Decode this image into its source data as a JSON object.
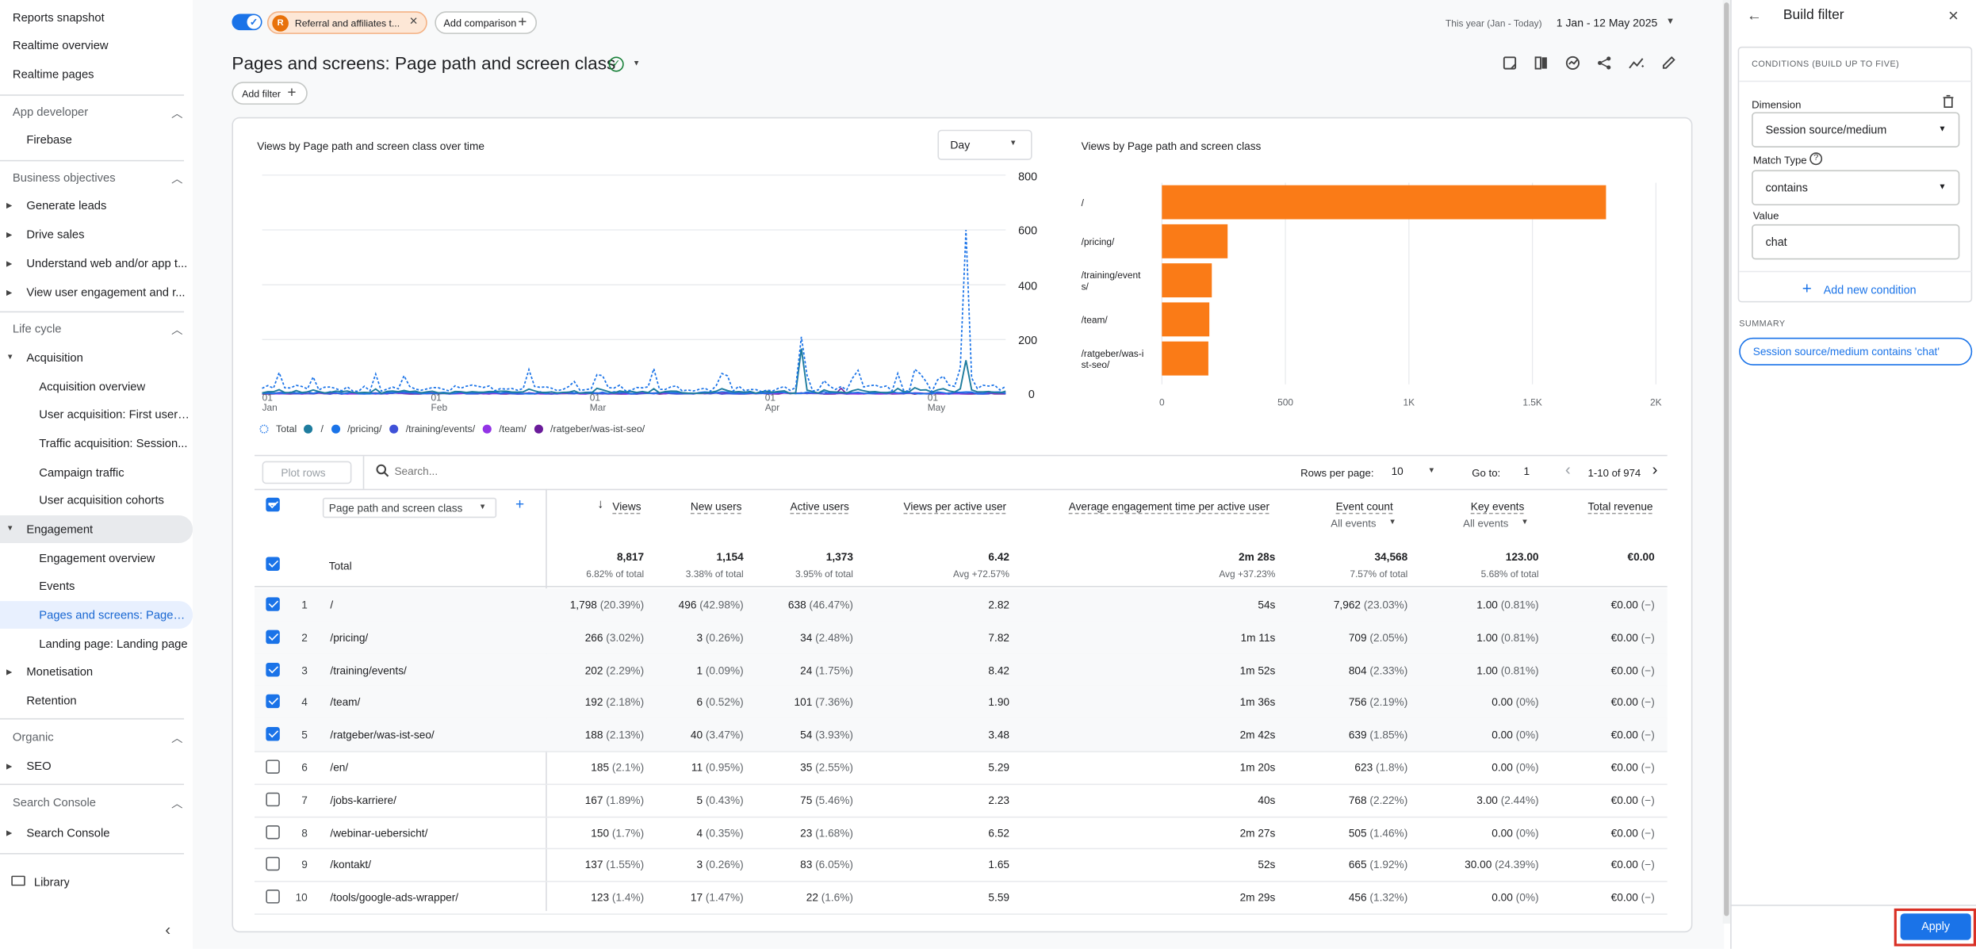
{
  "sidebar": {
    "top_items": [
      "Reports snapshot",
      "Realtime overview",
      "Realtime pages"
    ],
    "sections": [
      {
        "title": "App developer",
        "items": [
          {
            "label": "Firebase"
          }
        ]
      },
      {
        "title": "Business objectives",
        "items": [
          {
            "label": "Generate leads"
          },
          {
            "label": "Drive sales"
          },
          {
            "label": "Understand web and/or app t..."
          },
          {
            "label": "View user engagement and r..."
          }
        ]
      },
      {
        "title": "Life cycle"
      },
      {
        "title": "Organic"
      },
      {
        "title": "Search Console"
      }
    ],
    "lifecycle": {
      "acquisition": "Acquisition",
      "acq_items": [
        "Acquisition overview",
        "User acquisition: First user ...",
        "Traffic acquisition: Session...",
        "Campaign traffic",
        "User acquisition cohorts"
      ],
      "engagement": "Engagement",
      "eng_items": [
        "Engagement overview",
        "Events",
        "Pages and screens: Page p...",
        "Landing page: Landing page"
      ],
      "monetisation": "Monetisation",
      "retention": "Retention"
    },
    "seo": "SEO",
    "search_console": "Search Console",
    "library": "Library"
  },
  "topbar": {
    "filter_chip_letter": "R",
    "filter_chip": "Referral and affiliates t...",
    "add_comparison": "Add comparison",
    "date_label": "This year (Jan - Today)",
    "date_range": "1 Jan - 12 May 2025"
  },
  "page": {
    "title": "Pages and screens: Page path and screen class",
    "add_filter": "Add filter"
  },
  "line_chart": {
    "title": "Views by Page path and screen class over time",
    "granularity": "Day",
    "y_ticks": [
      "800",
      "600",
      "400",
      "200",
      "0"
    ],
    "x_ticks": [
      {
        "d": "01",
        "m": "Jan"
      },
      {
        "d": "01",
        "m": "Feb"
      },
      {
        "d": "01",
        "m": "Mar"
      },
      {
        "d": "01",
        "m": "Apr"
      },
      {
        "d": "01",
        "m": "May"
      }
    ],
    "legend": [
      "Total",
      "/",
      "/pricing/",
      "/training/events/",
      "/team/",
      "/ratgeber/was-ist-seo/"
    ]
  },
  "chart_data": {
    "type": "bar",
    "title": "Views by Page path and screen class",
    "categories": [
      "/",
      "/pricing/",
      "/training/events/",
      "/team/",
      "/ratgeber/was-ist-seo/"
    ],
    "category_labels": [
      [
        "/"
      ],
      [
        "/pricing/"
      ],
      [
        "/training/event",
        "s/"
      ],
      [
        "/team/"
      ],
      [
        "/ratgeber/was-i",
        "st-seo/"
      ]
    ],
    "values": [
      1798,
      266,
      202,
      192,
      188
    ],
    "x_ticks": [
      "0",
      "500",
      "1K",
      "1.5K",
      "2K"
    ],
    "xlim": [
      0,
      2000
    ],
    "color": "#fa7b17"
  },
  "table": {
    "plot_rows": "Plot rows",
    "search_placeholder": "Search...",
    "rows_per_page_label": "Rows per page:",
    "rows_per_page": "10",
    "go_to_label": "Go to:",
    "go_to": "1",
    "pagination": "1-10 of 974",
    "dimension": "Page path and screen class",
    "headers": [
      "Views",
      "New users",
      "Active users",
      "Views per active user",
      "Average engagement time per active user",
      "Event count",
      "Key events",
      "Total revenue"
    ],
    "all_events": "All events",
    "total_label": "Total",
    "totals": [
      {
        "v": "8,817",
        "s": "6.82% of total"
      },
      {
        "v": "1,154",
        "s": "3.38% of total"
      },
      {
        "v": "1,373",
        "s": "3.95% of total"
      },
      {
        "v": "6.42",
        "s": "Avg +72.57%"
      },
      {
        "v": "2m 28s",
        "s": "Avg +37.23%"
      },
      {
        "v": "34,568",
        "s": "7.57% of total"
      },
      {
        "v": "123.00",
        "s": "5.68% of total"
      },
      {
        "v": "€0.00",
        "s": ""
      }
    ],
    "rows": [
      {
        "n": "1",
        "page": "/",
        "views": "1,798",
        "vp": "(20.39%)",
        "new": "496",
        "np": "(42.98%)",
        "active": "638",
        "ap": "(46.47%)",
        "vpu": "2.82",
        "eng": "54s",
        "ev": "7,962",
        "evp": "(23.03%)",
        "key": "1.00",
        "kp": "(0.81%)",
        "rev": "€0.00",
        "rp": "(−)",
        "checked": true
      },
      {
        "n": "2",
        "page": "/pricing/",
        "views": "266",
        "vp": "(3.02%)",
        "new": "3",
        "np": "(0.26%)",
        "active": "34",
        "ap": "(2.48%)",
        "vpu": "7.82",
        "eng": "1m 11s",
        "ev": "709",
        "evp": "(2.05%)",
        "key": "1.00",
        "kp": "(0.81%)",
        "rev": "€0.00",
        "rp": "(−)",
        "checked": true
      },
      {
        "n": "3",
        "page": "/training/events/",
        "views": "202",
        "vp": "(2.29%)",
        "new": "1",
        "np": "(0.09%)",
        "active": "24",
        "ap": "(1.75%)",
        "vpu": "8.42",
        "eng": "1m 52s",
        "ev": "804",
        "evp": "(2.33%)",
        "key": "1.00",
        "kp": "(0.81%)",
        "rev": "€0.00",
        "rp": "(−)",
        "checked": true
      },
      {
        "n": "4",
        "page": "/team/",
        "views": "192",
        "vp": "(2.18%)",
        "new": "6",
        "np": "(0.52%)",
        "active": "101",
        "ap": "(7.36%)",
        "vpu": "1.90",
        "eng": "1m 36s",
        "ev": "756",
        "evp": "(2.19%)",
        "key": "0.00",
        "kp": "(0%)",
        "rev": "€0.00",
        "rp": "(−)",
        "checked": true
      },
      {
        "n": "5",
        "page": "/ratgeber/was-ist-seo/",
        "views": "188",
        "vp": "(2.13%)",
        "new": "40",
        "np": "(3.47%)",
        "active": "54",
        "ap": "(3.93%)",
        "vpu": "3.48",
        "eng": "2m 42s",
        "ev": "639",
        "evp": "(1.85%)",
        "key": "0.00",
        "kp": "(0%)",
        "rev": "€0.00",
        "rp": "(−)",
        "checked": true
      },
      {
        "n": "6",
        "page": "/en/",
        "views": "185",
        "vp": "(2.1%)",
        "new": "11",
        "np": "(0.95%)",
        "active": "35",
        "ap": "(2.55%)",
        "vpu": "5.29",
        "eng": "1m 20s",
        "ev": "623",
        "evp": "(1.8%)",
        "key": "0.00",
        "kp": "(0%)",
        "rev": "€0.00",
        "rp": "(−)",
        "checked": false
      },
      {
        "n": "7",
        "page": "/jobs-karriere/",
        "views": "167",
        "vp": "(1.89%)",
        "new": "5",
        "np": "(0.43%)",
        "active": "75",
        "ap": "(5.46%)",
        "vpu": "2.23",
        "eng": "40s",
        "ev": "768",
        "evp": "(2.22%)",
        "key": "3.00",
        "kp": "(2.44%)",
        "rev": "€0.00",
        "rp": "(−)",
        "checked": false
      },
      {
        "n": "8",
        "page": "/webinar-uebersicht/",
        "views": "150",
        "vp": "(1.7%)",
        "new": "4",
        "np": "(0.35%)",
        "active": "23",
        "ap": "(1.68%)",
        "vpu": "6.52",
        "eng": "2m 27s",
        "ev": "505",
        "evp": "(1.46%)",
        "key": "0.00",
        "kp": "(0%)",
        "rev": "€0.00",
        "rp": "(−)",
        "checked": false
      },
      {
        "n": "9",
        "page": "/kontakt/",
        "views": "137",
        "vp": "(1.55%)",
        "new": "3",
        "np": "(0.26%)",
        "active": "83",
        "ap": "(6.05%)",
        "vpu": "1.65",
        "eng": "52s",
        "ev": "665",
        "evp": "(1.92%)",
        "key": "30.00",
        "kp": "(24.39%)",
        "rev": "€0.00",
        "rp": "(−)",
        "checked": false
      },
      {
        "n": "10",
        "page": "/tools/google-ads-wrapper/",
        "views": "123",
        "vp": "(1.4%)",
        "new": "17",
        "np": "(1.47%)",
        "active": "22",
        "ap": "(1.6%)",
        "vpu": "5.59",
        "eng": "2m 29s",
        "ev": "456",
        "evp": "(1.32%)",
        "key": "0.00",
        "kp": "(0%)",
        "rev": "€0.00",
        "rp": "(−)",
        "checked": false
      }
    ]
  },
  "panel": {
    "title": "Build filter",
    "conditions_label": "CONDITIONS (BUILD UP TO FIVE)",
    "dimension_label": "Dimension",
    "dimension_value": "Session source/medium",
    "match_type_label": "Match Type",
    "match_type_value": "contains",
    "value_label": "Value",
    "value": "chat",
    "add_condition": "Add new condition",
    "summary_label": "SUMMARY",
    "summary": "Session source/medium contains 'chat'",
    "apply": "Apply"
  },
  "colors": {
    "accent": "#1a73e8",
    "bar": "#fa7b17",
    "highlight": "#d93025"
  }
}
